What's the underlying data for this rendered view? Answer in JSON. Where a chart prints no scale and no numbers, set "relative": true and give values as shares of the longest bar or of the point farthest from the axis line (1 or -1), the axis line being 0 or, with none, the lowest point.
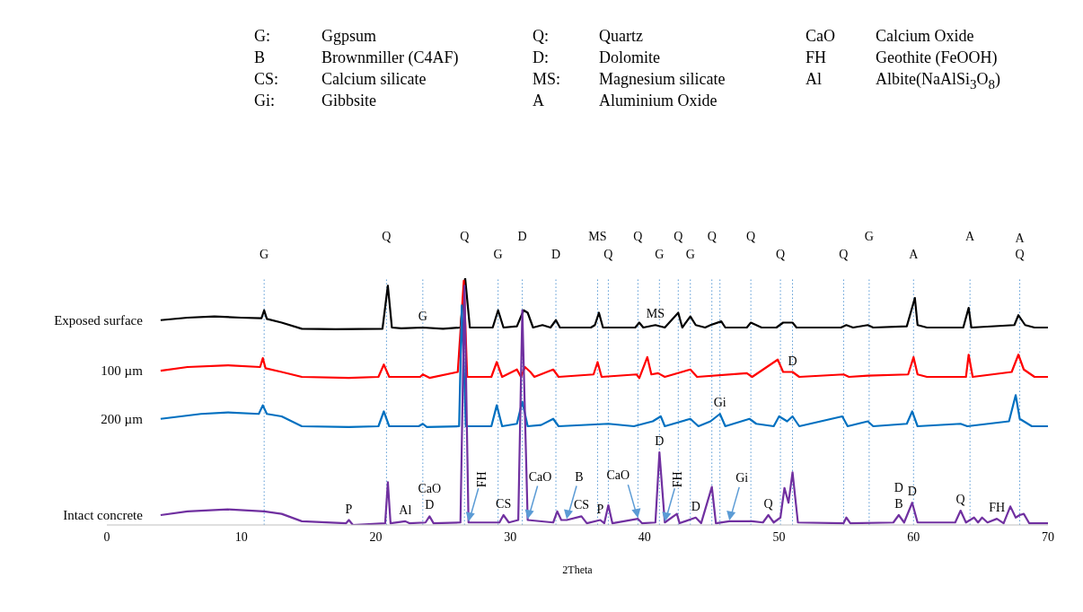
{
  "chart_data": {
    "type": "line",
    "relative": true,
    "xlabel": "2Theta",
    "xlim": [
      0,
      70
    ],
    "xticks": [
      0,
      10,
      20,
      30,
      40,
      50,
      60,
      70
    ],
    "series": [
      {
        "name": "Exposed surface",
        "color": "#000000",
        "x": [
          4,
          6,
          8,
          10,
          11.5,
          11.7,
          11.9,
          13,
          14.5,
          17,
          20.5,
          20.9,
          21.2,
          21.9,
          23.5,
          25,
          26.3,
          26.65,
          27,
          28.7,
          29.1,
          29.5,
          30.5,
          31.0,
          31.3,
          31.7,
          32.4,
          33,
          33.4,
          33.7,
          36,
          36.3,
          36.6,
          36.9,
          39.3,
          39.6,
          39.9,
          40.8,
          41.5,
          42.5,
          42.8,
          43.4,
          43.8,
          44.5,
          44.9,
          45.7,
          46,
          47.6,
          47.9,
          48.3,
          48.7,
          49.8,
          50.3,
          51,
          51.3,
          54.6,
          55,
          55.5,
          56.6,
          57,
          59.5,
          60.1,
          60.3,
          61,
          63.7,
          64.1,
          64.3,
          67.5,
          67.8,
          68.3,
          69,
          70
        ],
        "values": [
          0.83,
          0.84,
          0.845,
          0.84,
          0.838,
          0.87,
          0.835,
          0.82,
          0.795,
          0.793,
          0.795,
          0.97,
          0.8,
          0.797,
          0.8,
          0.795,
          0.8,
          1.0,
          0.8,
          0.8,
          0.87,
          0.8,
          0.805,
          0.87,
          0.86,
          0.8,
          0.81,
          0.8,
          0.83,
          0.8,
          0.8,
          0.81,
          0.86,
          0.8,
          0.8,
          0.82,
          0.8,
          0.81,
          0.8,
          0.86,
          0.8,
          0.845,
          0.81,
          0.8,
          0.81,
          0.825,
          0.8,
          0.8,
          0.82,
          0.81,
          0.8,
          0.8,
          0.82,
          0.82,
          0.8,
          0.8,
          0.81,
          0.8,
          0.81,
          0.8,
          0.805,
          0.92,
          0.81,
          0.8,
          0.8,
          0.88,
          0.8,
          0.81,
          0.85,
          0.81,
          0.8,
          0.8
        ]
      },
      {
        "name": "100 µm",
        "color": "#ff0000",
        "x": [
          4,
          6,
          9,
          11.4,
          11.6,
          11.8,
          13,
          14.5,
          18,
          20.2,
          20.6,
          21,
          23.3,
          23.5,
          24,
          26.1,
          26.55,
          26.8,
          28.6,
          29.0,
          29.4,
          30.5,
          30.8,
          31.1,
          31.5,
          31.8,
          33.2,
          33.6,
          36.2,
          36.5,
          36.8,
          39.4,
          39.6,
          40.2,
          40.5,
          41,
          41.5,
          43.4,
          43.9,
          47.6,
          48,
          49.9,
          50.3,
          51,
          51.5,
          54.8,
          55.2,
          56.6,
          59.6,
          60.0,
          60.3,
          61,
          63.9,
          64.1,
          64.4,
          67.3,
          67.8,
          68.2,
          69,
          70
        ],
        "values": [
          0.625,
          0.64,
          0.647,
          0.64,
          0.676,
          0.635,
          0.62,
          0.6,
          0.596,
          0.6,
          0.65,
          0.6,
          0.6,
          0.61,
          0.596,
          0.62,
          0.99,
          0.6,
          0.6,
          0.66,
          0.6,
          0.63,
          0.6,
          0.64,
          0.62,
          0.6,
          0.63,
          0.6,
          0.61,
          0.66,
          0.6,
          0.61,
          0.595,
          0.68,
          0.61,
          0.615,
          0.6,
          0.63,
          0.6,
          0.615,
          0.6,
          0.67,
          0.62,
          0.62,
          0.6,
          0.61,
          0.6,
          0.605,
          0.61,
          0.68,
          0.61,
          0.6,
          0.6,
          0.69,
          0.6,
          0.62,
          0.69,
          0.63,
          0.6,
          0.6
        ]
      },
      {
        "name": "200 µm",
        "color": "#0070c0",
        "x": [
          4,
          7,
          9,
          11.3,
          11.6,
          11.9,
          13,
          14.5,
          18,
          20.2,
          20.6,
          21,
          23.2,
          23.5,
          23.8,
          26.2,
          26.4,
          26.7,
          28.6,
          29.0,
          29.4,
          30.5,
          30.9,
          31.3,
          32.3,
          33.2,
          33.6,
          37.3,
          39.2,
          40.6,
          41.2,
          41.5,
          43.4,
          44,
          44.9,
          45.6,
          46,
          47.8,
          48.3,
          49.6,
          50,
          50.6,
          51,
          51.5,
          54.7,
          55.1,
          56.6,
          57,
          59.5,
          59.9,
          60.3,
          63.5,
          64,
          67.1,
          67.6,
          67.9,
          68.8,
          70
        ],
        "values": [
          0.43,
          0.45,
          0.456,
          0.45,
          0.485,
          0.45,
          0.44,
          0.4,
          0.397,
          0.4,
          0.46,
          0.4,
          0.4,
          0.41,
          0.397,
          0.4,
          0.89,
          0.4,
          0.4,
          0.485,
          0.4,
          0.41,
          0.5,
          0.4,
          0.405,
          0.43,
          0.4,
          0.41,
          0.4,
          0.42,
          0.44,
          0.4,
          0.43,
          0.4,
          0.42,
          0.45,
          0.4,
          0.43,
          0.41,
          0.4,
          0.44,
          0.42,
          0.44,
          0.4,
          0.44,
          0.4,
          0.42,
          0.4,
          0.41,
          0.46,
          0.4,
          0.41,
          0.4,
          0.42,
          0.526,
          0.43,
          0.4,
          0.4
        ]
      },
      {
        "name": "Intact concrete",
        "color": "#7030a0",
        "x": [
          4,
          6,
          9,
          11.7,
          13,
          14.5,
          17.8,
          18,
          18.3,
          20.7,
          20.9,
          21.1,
          22.2,
          22.5,
          23.7,
          24,
          24.3,
          26.3,
          26.6,
          26.9,
          29.2,
          29.5,
          29.9,
          30.6,
          30.9,
          31.3,
          33.2,
          33.5,
          33.8,
          34.2,
          35.3,
          35.7,
          36.7,
          37.0,
          37.3,
          37.6,
          39.5,
          39.8,
          40.8,
          41.1,
          41.5,
          42.4,
          42.6,
          43.8,
          44.2,
          45.0,
          45.3,
          46.3,
          48,
          48.8,
          49.2,
          49.6,
          50.1,
          50.4,
          50.7,
          51.0,
          51.4,
          54.8,
          55,
          55.3,
          58.5,
          58.9,
          59.3,
          59.9,
          60.3,
          63.1,
          63.5,
          63.9,
          64.5,
          64.8,
          65.1,
          65.5,
          66.2,
          66.7,
          67.2,
          67.6,
          67.9,
          68.2,
          68.6,
          70
        ],
        "values": [
          0.04,
          0.055,
          0.063,
          0.055,
          0.045,
          0.015,
          0.007,
          0.02,
          0,
          0.007,
          0.173,
          0.007,
          0.015,
          0.007,
          0.01,
          0.035,
          0.007,
          0.01,
          0.97,
          0.01,
          0.01,
          0.04,
          0.01,
          0.02,
          0.87,
          0.02,
          0.01,
          0.055,
          0.02,
          0.02,
          0.035,
          0.007,
          0.02,
          0.007,
          0.08,
          0.007,
          0.025,
          0.007,
          0.01,
          0.294,
          0.01,
          0.045,
          0.007,
          0.03,
          0.007,
          0.154,
          0.007,
          0.015,
          0.015,
          0.01,
          0.04,
          0.01,
          0.03,
          0.15,
          0.09,
          0.213,
          0.01,
          0.007,
          0.03,
          0.007,
          0.01,
          0.04,
          0.01,
          0.09,
          0.01,
          0.01,
          0.058,
          0.01,
          0.03,
          0.01,
          0.03,
          0.01,
          0.025,
          0.007,
          0.075,
          0.03,
          0.04,
          0.045,
          0.007,
          0.007
        ]
      }
    ],
    "ref_lines": [
      {
        "axis": "x",
        "value": 11.7,
        "label": "G",
        "color": "#5b9bd5",
        "line_style": "dotted"
      },
      {
        "axis": "x",
        "value": 20.8,
        "label": "Q",
        "color": "#5b9bd5",
        "line_style": "dotted"
      },
      {
        "axis": "x",
        "value": 23.5,
        "color": "#5b9bd5",
        "line_style": "dotted"
      },
      {
        "axis": "x",
        "value": 26.6,
        "label": "Q",
        "color": "#5b9bd5",
        "line_style": "dotted"
      },
      {
        "axis": "x",
        "value": 29.1,
        "label": "G",
        "color": "#5b9bd5",
        "line_style": "dotted"
      },
      {
        "axis": "x",
        "value": 30.9,
        "label": "D",
        "color": "#5b9bd5",
        "line_style": "dotted"
      },
      {
        "axis": "x",
        "value": 33.4,
        "label": "D",
        "color": "#5b9bd5",
        "line_style": "dotted"
      },
      {
        "axis": "x",
        "value": 36.5,
        "label": "MS",
        "color": "#5b9bd5",
        "line_style": "dotted"
      },
      {
        "axis": "x",
        "value": 37.3,
        "label": "Q",
        "color": "#5b9bd5",
        "line_style": "dotted"
      },
      {
        "axis": "x",
        "value": 39.5,
        "label": "Q",
        "color": "#5b9bd5",
        "line_style": "dotted"
      },
      {
        "axis": "x",
        "value": 41.1,
        "label": "G",
        "color": "#5b9bd5",
        "line_style": "dotted"
      },
      {
        "axis": "x",
        "value": 42.5,
        "label": "Q",
        "color": "#5b9bd5",
        "line_style": "dotted"
      },
      {
        "axis": "x",
        "value": 43.4,
        "label": "G",
        "color": "#5b9bd5",
        "line_style": "dotted"
      },
      {
        "axis": "x",
        "value": 45.0,
        "label": "Q",
        "color": "#5b9bd5",
        "line_style": "dotted"
      },
      {
        "axis": "x",
        "value": 45.6,
        "color": "#5b9bd5",
        "line_style": "dotted"
      },
      {
        "axis": "x",
        "value": 47.9,
        "label": "Q",
        "color": "#5b9bd5",
        "line_style": "dotted"
      },
      {
        "axis": "x",
        "value": 50.1,
        "label": "Q",
        "color": "#5b9bd5",
        "line_style": "dotted"
      },
      {
        "axis": "x",
        "value": 51.0,
        "color": "#5b9bd5",
        "line_style": "dotted"
      },
      {
        "axis": "x",
        "value": 54.8,
        "label": "Q",
        "color": "#5b9bd5",
        "line_style": "dotted"
      },
      {
        "axis": "x",
        "value": 56.7,
        "label": "G",
        "color": "#5b9bd5",
        "line_style": "dotted"
      },
      {
        "axis": "x",
        "value": 60.0,
        "label": "A",
        "color": "#5b9bd5",
        "line_style": "dotted"
      },
      {
        "axis": "x",
        "value": 64.2,
        "label": "A",
        "color": "#5b9bd5",
        "line_style": "dotted"
      },
      {
        "axis": "x",
        "value": 67.9,
        "label": "A Q",
        "color": "#5b9bd5",
        "line_style": "dotted"
      }
    ],
    "annotations": [
      "G:",
      "Ggpsum",
      "Q:",
      "Quartz",
      "CaO",
      "Calcium Oxide",
      "B",
      "Brownmiller (C4AF)",
      "D:",
      "Dolomite",
      "FH",
      "Geothite (FeOOH)",
      "CS:",
      "Calcium silicate",
      "MS:",
      "Magnesium silicate",
      "Al",
      "Albite(NaAlSi$_{3}$O$_{8}$)",
      "Gi:",
      "Gibbsite",
      "A",
      "Aluminium Oxide",
      {
        "text": "P",
        "x": 18,
        "y": 0.02
      },
      {
        "text": "Al",
        "x": 22.2,
        "y": 0.015
      },
      {
        "text": "D",
        "x": 24,
        "y": 0.035
      },
      {
        "text": "CaO",
        "x": 24,
        "y": 0.035
      },
      {
        "text": "FH",
        "x": 26.9,
        "y": 0.01
      },
      {
        "text": "CS",
        "x": 29.5,
        "y": 0.04
      },
      {
        "text": "CaO",
        "x": 31.3,
        "y": 0.02
      },
      {
        "text": "B",
        "x": 34.2,
        "y": 0.02
      },
      {
        "text": "CS",
        "x": 35.3,
        "y": 0.035
      },
      {
        "text": "P",
        "x": 36.7,
        "y": 0.02
      },
      {
        "text": "CaO",
        "x": 39.5,
        "y": 0.025
      },
      {
        "text": "D",
        "x": 41.1,
        "y": 0.294
      },
      {
        "text": "FH",
        "x": 41.5,
        "y": 0.01
      },
      {
        "text": "D",
        "x": 43.8,
        "y": 0.03
      },
      {
        "text": "Gi",
        "x": 46.3,
        "y": 0.015
      },
      {
        "text": "Q",
        "x": 49.2,
        "y": 0.04
      },
      {
        "text": "B",
        "x": 58.9,
        "y": 0.04
      },
      {
        "text": "D",
        "x": 58.9,
        "y": 0.04
      },
      {
        "text": "D",
        "x": 59.9,
        "y": 0.09
      },
      {
        "text": "Q",
        "x": 63.5,
        "y": 0.058
      },
      {
        "text": "FH",
        "x": 66.2,
        "y": 0.025
      },
      {
        "text": "G",
        "x": 23.5,
        "y": 0.8
      },
      {
        "text": "MS",
        "x": 40.8,
        "y": 0.81
      },
      {
        "text": "D",
        "x": 51,
        "y": 0.62
      },
      {
        "text": "Gi",
        "x": 45.6,
        "y": 0.45
      }
    ]
  }
}
